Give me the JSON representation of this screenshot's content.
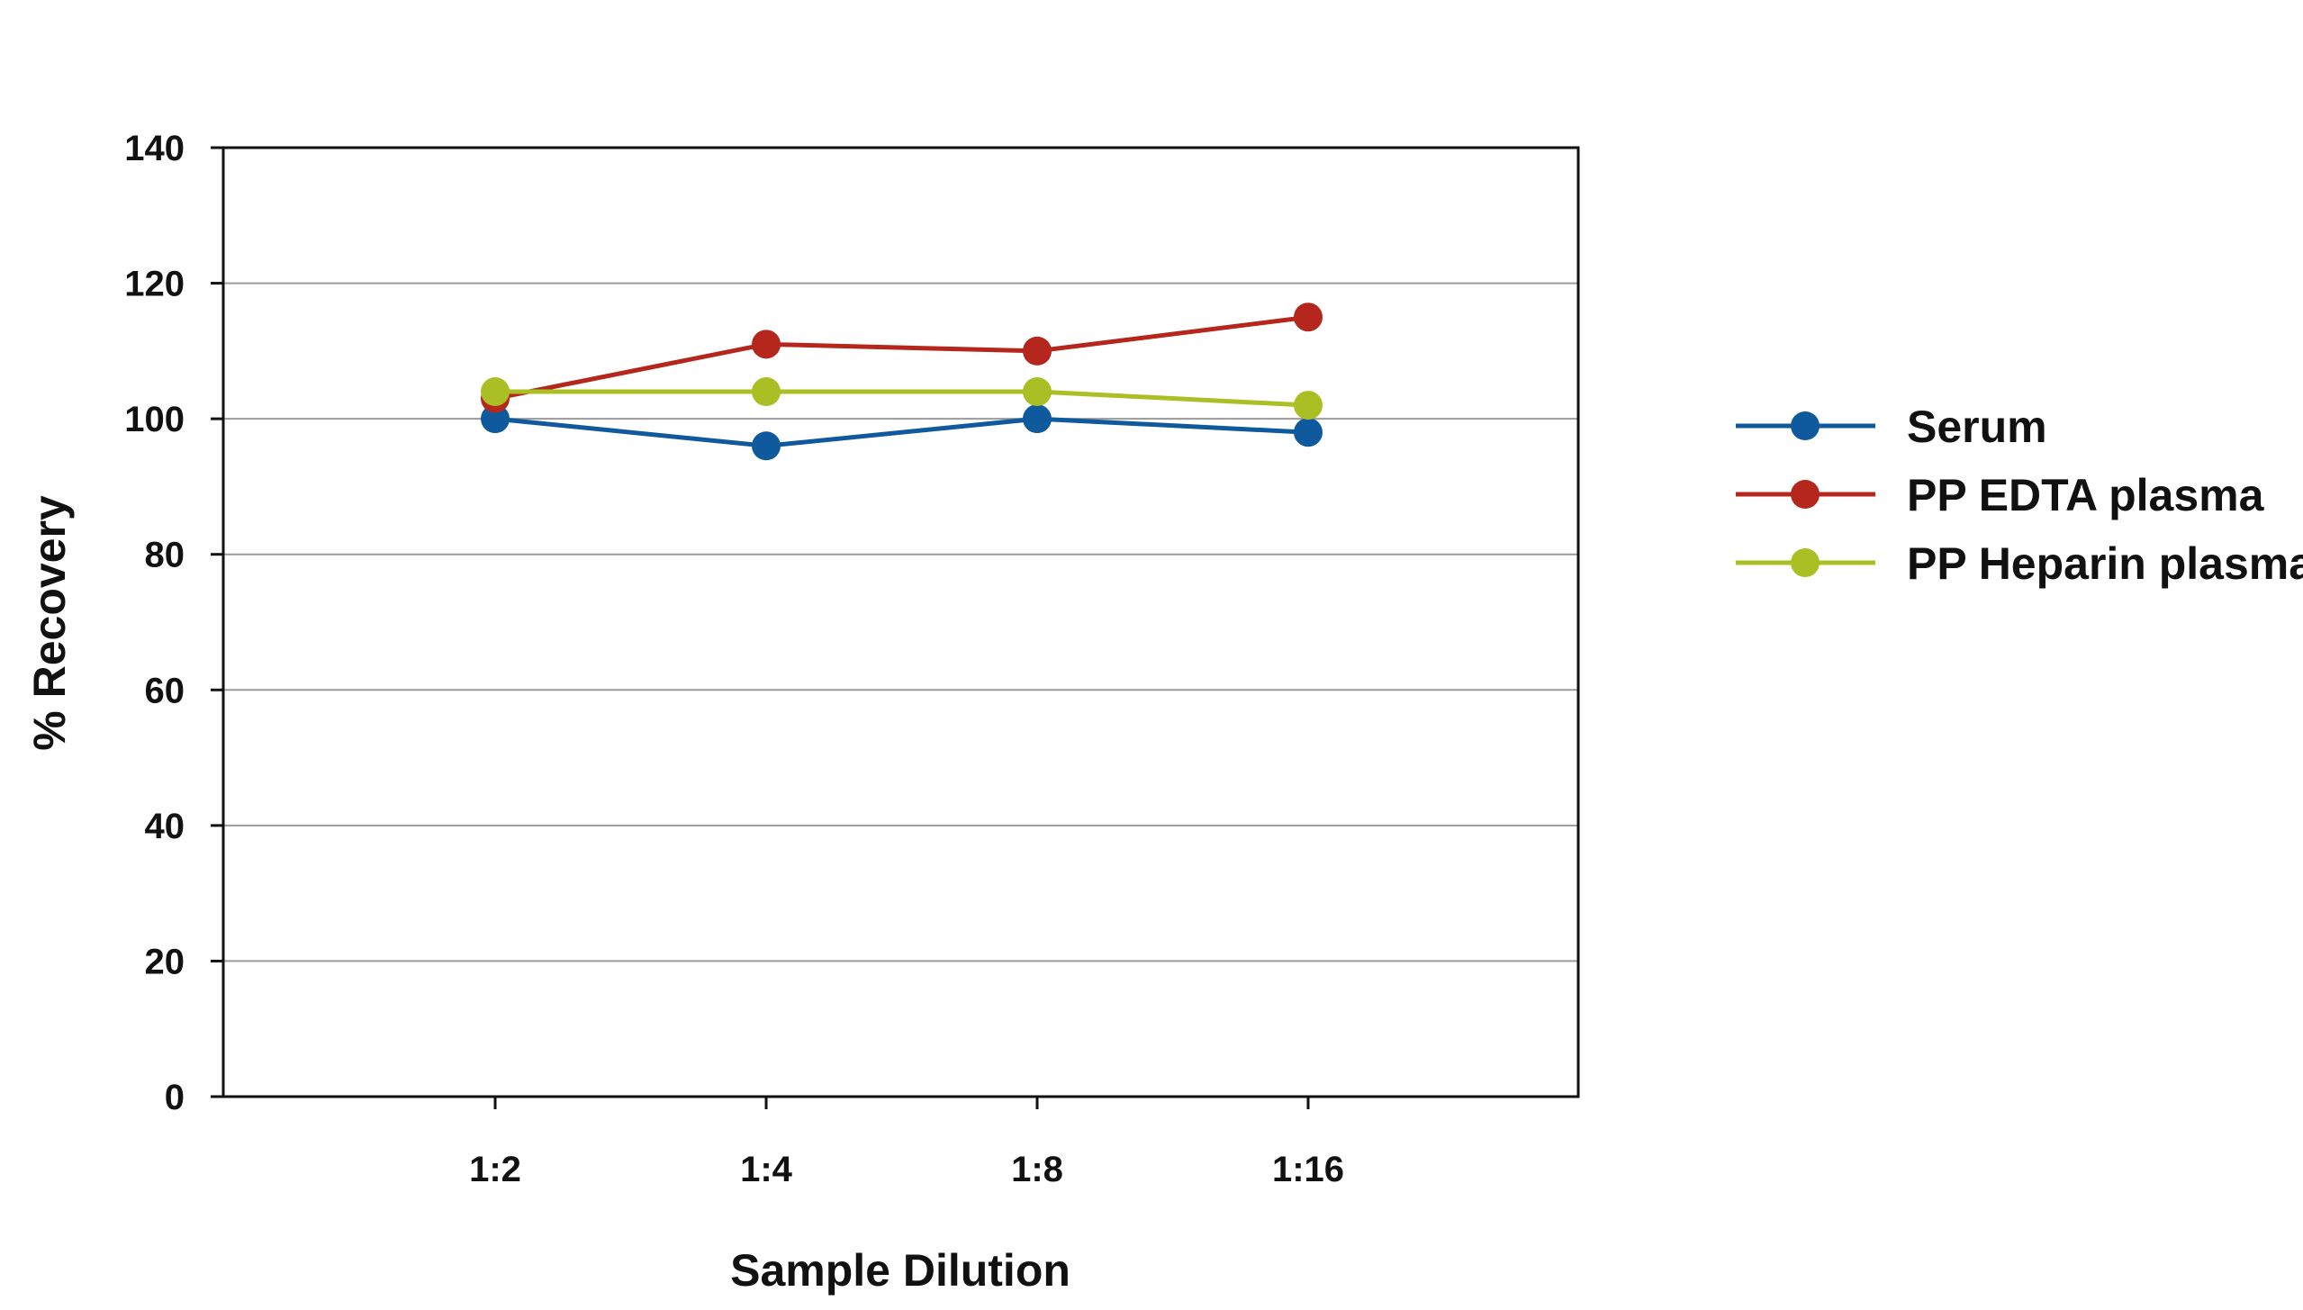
{
  "chart_data": {
    "type": "line",
    "title": "",
    "xlabel": "Sample Dilution",
    "ylabel": "% Recovery",
    "categories": [
      "1:2",
      "1:4",
      "1:8",
      "1:16"
    ],
    "ylim": [
      0,
      140
    ],
    "yticks": [
      "0",
      "20",
      "40",
      "60",
      "80",
      "100",
      "120",
      "140"
    ],
    "grid": "horizontal",
    "legend_position": "right",
    "series": [
      {
        "name": "Serum",
        "color": "#0f5a9c",
        "values": [
          100,
          96,
          100,
          98
        ]
      },
      {
        "name": "PP EDTA plasma",
        "color": "#b5271c",
        "values": [
          103,
          111,
          110,
          115
        ]
      },
      {
        "name": "PP Heparin plasma",
        "color": "#a9bf23",
        "values": [
          104,
          104,
          104,
          102
        ]
      }
    ]
  }
}
